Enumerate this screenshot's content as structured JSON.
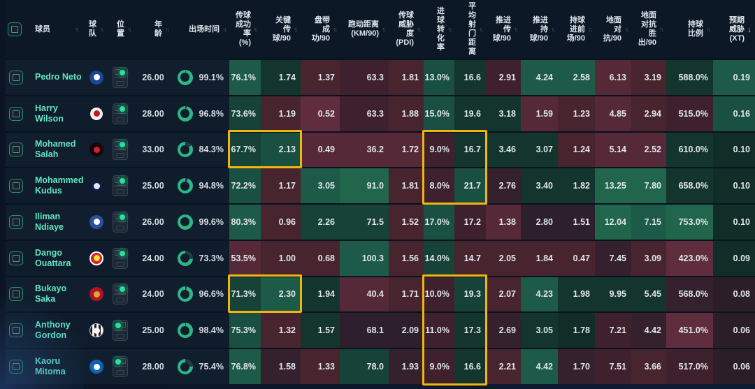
{
  "app": {
    "description": "player-stats-heatmap-table"
  },
  "accent": {
    "highlight_border": "#f1b512",
    "player_name": "#63e6c0",
    "ring_fill": "#2db784",
    "ring_track": "#243b45"
  },
  "sort_icons": {
    "inactive": "↑↓",
    "active_desc": "↓"
  },
  "palette": {
    "G5": "#20654c",
    "G4": "#1d5a47",
    "G3": "#1a5042",
    "G2": "#164237",
    "G1": "#14352d",
    "G0": "#112d28",
    "N": "#2e1f2c",
    "R0": "#2b1e29",
    "R1": "#35212e",
    "R2": "#3f212d",
    "R3": "#48242f",
    "R4": "#552938",
    "R5": "#5f2d3d"
  },
  "teams": {
    "chelsea": {
      "bg": "#1b4596",
      "fg": "#ffffff",
      "border": "none"
    },
    "fulham": {
      "bg": "#f2f2f2",
      "fg": "#c01722",
      "border": "1px solid #1a1a1a"
    },
    "liverpool": {
      "bg": "#170409",
      "fg": "#d01f2e",
      "border": "none"
    },
    "tottenham": {
      "bg": "#0c1b3e",
      "fg": "#dfe7f2",
      "border": "none"
    },
    "everton": {
      "bg": "#2b4f9e",
      "fg": "#ffffff",
      "border": "none"
    },
    "brentford": {
      "bg": "#d81f2a",
      "fg": "#f7e23a",
      "border": "2px solid #ffffff"
    },
    "arsenal": {
      "bg": "#b01325",
      "fg": "#d8ac34",
      "border": "none"
    },
    "newcastle": {
      "bg": "#17171f",
      "fg": "#f5f5f5",
      "border": "1px solid #cfcfcf"
    },
    "brighton": {
      "bg": "#0f63b2",
      "fg": "#ffffff",
      "border": "none"
    }
  },
  "columns": [
    {
      "id": "select",
      "label": "",
      "sort": null
    },
    {
      "id": "player",
      "label": "球员",
      "sort": "both"
    },
    {
      "id": "team",
      "label": "球\n队",
      "sort": "both"
    },
    {
      "id": "position",
      "label": "位\n置",
      "sort": "both"
    },
    {
      "id": "age",
      "label": "年\n龄",
      "sort": "both"
    },
    {
      "id": "play_time",
      "label": "出场时间",
      "sort": "both"
    },
    {
      "id": "pass_pct",
      "label": "传球\n成功\n率\n(%)",
      "sort": "both"
    },
    {
      "id": "key_passes",
      "label": "关键\n传\n球/90",
      "sort": "both"
    },
    {
      "id": "dribbles",
      "label": "盘带\n成\n功/90",
      "sort": "both"
    },
    {
      "id": "distance",
      "label": "跑动距离\n(KM/90)",
      "sort": "both"
    },
    {
      "id": "pass_threat",
      "label": "传球\n威胁\n度\n(PDI)",
      "sort": "both"
    },
    {
      "id": "conversion",
      "label": "进\n球\n转\n化\n率",
      "sort": "both"
    },
    {
      "id": "shot_distance",
      "label": "平\n均\n射\n门\n距\n离",
      "sort": "both"
    },
    {
      "id": "prog_passes",
      "label": "推进\n传\n球/90",
      "sort": "both"
    },
    {
      "id": "prog_carries",
      "label": "推进\n持\n球/90",
      "sort": "both"
    },
    {
      "id": "carries_final_third",
      "label": "持球\n进前\n场/90",
      "sort": "both"
    },
    {
      "id": "ground_duels",
      "label": "地面\n对\n抗/90",
      "sort": "both"
    },
    {
      "id": "ground_duels_won",
      "label": "地面\n对抗\n胜\n出/90",
      "sort": "both"
    },
    {
      "id": "possession",
      "label": "持球\n比例",
      "sort": "both"
    },
    {
      "id": "xt",
      "label": "预期\n威胁\n(XT)",
      "sort": "desc"
    }
  ],
  "players": [
    {
      "name": "Pedro Neto",
      "team": "chelsea",
      "position": "right",
      "age": "26.00",
      "play_time": "99.1%",
      "play_time_pct": 99.1,
      "stats": [
        [
          "76.1%",
          "G4"
        ],
        [
          "1.74",
          "G1"
        ],
        [
          "1.37",
          "R3"
        ],
        [
          "63.3",
          "R2"
        ],
        [
          "1.81",
          "R3"
        ],
        [
          "13.0%",
          "G3"
        ],
        [
          "16.6",
          "G1"
        ],
        [
          "2.91",
          "R2"
        ],
        [
          "4.24",
          "G4"
        ],
        [
          "2.58",
          "G4"
        ],
        [
          "6.13",
          "R4"
        ],
        [
          "3.19",
          "R3"
        ],
        [
          "588.0%",
          "G1"
        ],
        [
          "0.19",
          "G4"
        ]
      ]
    },
    {
      "name": "Harry Wilson",
      "team": "fulham",
      "position": "right",
      "age": "28.00",
      "play_time": "96.8%",
      "play_time_pct": 96.8,
      "stats": [
        [
          "73.6%",
          "G2"
        ],
        [
          "1.19",
          "R3"
        ],
        [
          "0.52",
          "R5"
        ],
        [
          "63.3",
          "R2"
        ],
        [
          "1.88",
          "R3"
        ],
        [
          "15.0%",
          "G3"
        ],
        [
          "19.6",
          "G1"
        ],
        [
          "3.18",
          "G1"
        ],
        [
          "1.59",
          "R4"
        ],
        [
          "1.23",
          "R3"
        ],
        [
          "4.85",
          "R4"
        ],
        [
          "2.94",
          "R3"
        ],
        [
          "515.0%",
          "R2"
        ],
        [
          "0.16",
          "G3"
        ]
      ]
    },
    {
      "name": "Mohamed Salah",
      "team": "liverpool",
      "position": "right",
      "age": "33.00",
      "play_time": "84.3%",
      "play_time_pct": 84.3,
      "stats": [
        [
          "67.7%",
          "G2"
        ],
        [
          "2.13",
          "G3"
        ],
        [
          "0.49",
          "R4"
        ],
        [
          "36.2",
          "R4"
        ],
        [
          "1.72",
          "R4"
        ],
        [
          "9.0%",
          "R2"
        ],
        [
          "16.7",
          "G1"
        ],
        [
          "3.46",
          "G1"
        ],
        [
          "3.07",
          "G1"
        ],
        [
          "1.24",
          "R3"
        ],
        [
          "5.14",
          "R4"
        ],
        [
          "2.52",
          "R4"
        ],
        [
          "610.0%",
          "G1"
        ],
        [
          "0.10",
          "G0"
        ]
      ]
    },
    {
      "name": "Mohammed Kudus",
      "team": "tottenham",
      "position": "right",
      "age": "25.00",
      "play_time": "94.8%",
      "play_time_pct": 94.8,
      "stats": [
        [
          "72.2%",
          "G3"
        ],
        [
          "1.17",
          "R3"
        ],
        [
          "3.05",
          "G4"
        ],
        [
          "91.0",
          "G5"
        ],
        [
          "1.81",
          "R3"
        ],
        [
          "8.0%",
          "R2"
        ],
        [
          "21.7",
          "G3"
        ],
        [
          "2.76",
          "R1"
        ],
        [
          "3.40",
          "G1"
        ],
        [
          "1.82",
          "G1"
        ],
        [
          "13.25",
          "G5"
        ],
        [
          "7.80",
          "G5"
        ],
        [
          "658.0%",
          "G1"
        ],
        [
          "0.10",
          "G0"
        ]
      ]
    },
    {
      "name": "Iliman Ndiaye",
      "team": "everton",
      "position": "right",
      "age": "26.00",
      "play_time": "99.6%",
      "play_time_pct": 99.6,
      "stats": [
        [
          "80.3%",
          "G4"
        ],
        [
          "0.96",
          "R3"
        ],
        [
          "2.26",
          "G2"
        ],
        [
          "71.5",
          "G2"
        ],
        [
          "1.52",
          "R3"
        ],
        [
          "17.0%",
          "G3"
        ],
        [
          "17.2",
          "R2"
        ],
        [
          "1.38",
          "R4"
        ],
        [
          "2.80",
          "N"
        ],
        [
          "1.51",
          "N"
        ],
        [
          "12.04",
          "G5"
        ],
        [
          "7.15",
          "G4"
        ],
        [
          "753.0%",
          "G5"
        ],
        [
          "0.10",
          "G0"
        ]
      ]
    },
    {
      "name": "Dango Ouattara",
      "team": "brentford",
      "position": "right",
      "age": "24.00",
      "play_time": "73.3%",
      "play_time_pct": 73.3,
      "stats": [
        [
          "53.5%",
          "R4"
        ],
        [
          "1.00",
          "R3"
        ],
        [
          "0.68",
          "R3"
        ],
        [
          "100.3",
          "G4"
        ],
        [
          "1.56",
          "R3"
        ],
        [
          "14.0%",
          "G2"
        ],
        [
          "14.7",
          "R3"
        ],
        [
          "2.05",
          "R3"
        ],
        [
          "1.84",
          "R3"
        ],
        [
          "0.47",
          "R3"
        ],
        [
          "7.45",
          "R1"
        ],
        [
          "3.09",
          "R3"
        ],
        [
          "423.0%",
          "R5"
        ],
        [
          "0.09",
          "G0"
        ]
      ]
    },
    {
      "name": "Bukayo Saka",
      "team": "arsenal",
      "position": "right",
      "age": "24.00",
      "play_time": "96.6%",
      "play_time_pct": 96.6,
      "stats": [
        [
          "71.3%",
          "G2"
        ],
        [
          "2.30",
          "G4"
        ],
        [
          "1.94",
          "G1"
        ],
        [
          "40.4",
          "R4"
        ],
        [
          "1.71",
          "R3"
        ],
        [
          "10.0%",
          "R2"
        ],
        [
          "19.3",
          "G2"
        ],
        [
          "2.07",
          "R3"
        ],
        [
          "4.23",
          "G4"
        ],
        [
          "1.98",
          "G1"
        ],
        [
          "9.95",
          "G1"
        ],
        [
          "5.45",
          "G1"
        ],
        [
          "568.0%",
          "R1"
        ],
        [
          "0.08",
          "R0"
        ]
      ]
    },
    {
      "name": "Anthony Gordon",
      "team": "newcastle",
      "position": "left",
      "age": "25.00",
      "play_time": "98.4%",
      "play_time_pct": 98.4,
      "stats": [
        [
          "75.3%",
          "G3"
        ],
        [
          "1.32",
          "R3"
        ],
        [
          "1.57",
          "G1"
        ],
        [
          "68.1",
          "N"
        ],
        [
          "2.09",
          "N"
        ],
        [
          "11.0%",
          "R2"
        ],
        [
          "17.3",
          "G1"
        ],
        [
          "2.69",
          "R1"
        ],
        [
          "3.05",
          "G1"
        ],
        [
          "1.78",
          "G0"
        ],
        [
          "7.21",
          "R2"
        ],
        [
          "4.42",
          "R1"
        ],
        [
          "451.0%",
          "R5"
        ],
        [
          "0.06",
          "R0"
        ]
      ]
    },
    {
      "name": "Kaoru Mitoma",
      "team": "brighton",
      "position": "left",
      "age": "28.00",
      "play_time": "75.4%",
      "play_time_pct": 75.4,
      "stats": [
        [
          "76.8%",
          "G4"
        ],
        [
          "1.58",
          "R1"
        ],
        [
          "1.33",
          "R3"
        ],
        [
          "78.0",
          "G2"
        ],
        [
          "1.93",
          "R1"
        ],
        [
          "9.0%",
          "R2"
        ],
        [
          "16.6",
          "G1"
        ],
        [
          "2.21",
          "R3"
        ],
        [
          "4.42",
          "G4"
        ],
        [
          "1.70",
          "R1"
        ],
        [
          "7.51",
          "R2"
        ],
        [
          "3.66",
          "R3"
        ],
        [
          "517.0%",
          "R2"
        ],
        [
          "0.06",
          "R0"
        ]
      ]
    }
  ],
  "highlights": [
    {
      "row": 2,
      "stats_from": 0,
      "stats_to": 1,
      "row_span": 1
    },
    {
      "row": 2,
      "stats_from": 5,
      "stats_to": 6,
      "row_span": 2
    },
    {
      "row": 6,
      "stats_from": 0,
      "stats_to": 1,
      "row_span": 1
    },
    {
      "row": 6,
      "stats_from": 5,
      "stats_to": 6,
      "row_span": 3
    }
  ]
}
